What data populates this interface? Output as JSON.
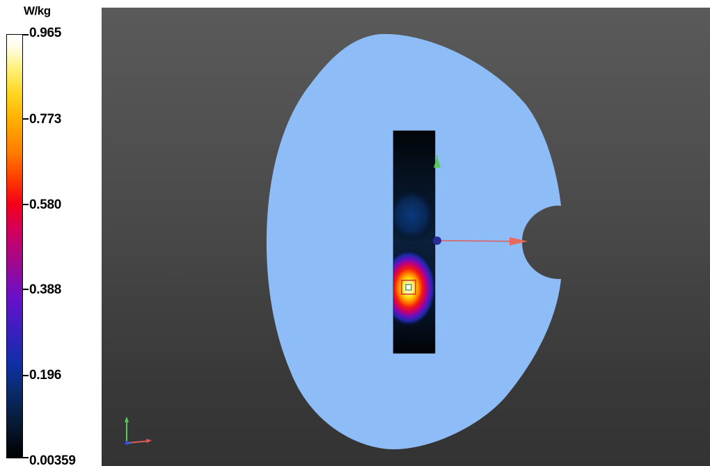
{
  "legend": {
    "unit": "W/kg",
    "ticks": [
      {
        "value": 0.965,
        "label": "0.965"
      },
      {
        "value": 0.773,
        "label": "0.773"
      },
      {
        "value": 0.58,
        "label": "0.580"
      },
      {
        "value": 0.388,
        "label": "0.388"
      },
      {
        "value": 0.196,
        "label": "0.196"
      },
      {
        "value": 0.00359,
        "label": "0.00359"
      }
    ],
    "min": 0.00359,
    "max": 0.965,
    "colormap": "black-blue-purple-red-orange-yellow-white"
  },
  "viewport": {
    "background_color": "#4a4a4a",
    "phantom_color": "#8dbcf6",
    "scan_area_colormap": "SAR heatmap",
    "peak_color": "#ffffff",
    "axis_icons": [
      "x-axis-arrow-icon",
      "y-axis-arrow-icon",
      "z-axis-dot-icon"
    ],
    "colors": {
      "x_axis": "#e05a5a",
      "y_axis": "#5ac85a",
      "z_axis": "#3b3bd0"
    }
  }
}
